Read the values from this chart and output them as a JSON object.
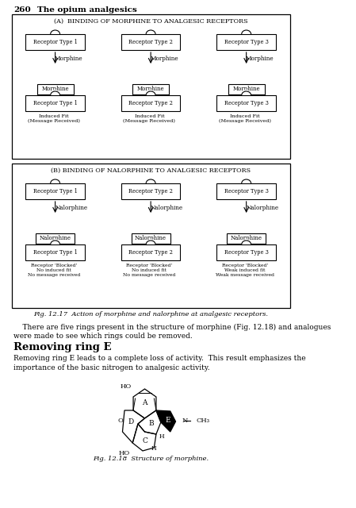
{
  "page_num": "260",
  "page_title": "The opium analgesics",
  "fig_caption_A": "Fig. 12.17  Action of morphine and nalorphine at analgesic receptors.",
  "section_heading": "Removing ring E",
  "paragraph1": "    There are five rings present in the structure of morphine (Fig. 12.18) and analogues",
  "paragraph1b": "were made to see which rings could be removed.",
  "paragraph2": "Removing ring E leads to a complete loss of activity.  This result emphasizes the",
  "paragraph2b": "importance of the basic nitrogen to analgesic activity.",
  "fig_caption_B": "Fig. 12.18  Structure of morphine.",
  "box_A_title": "(A)  BINDING OF MORPHINE TO ANALGESIC RECEPTORS",
  "box_B_title": "(B) BINDING OF NALORPHINE TO ANALGESIC RECEPTORS",
  "receptor_types": [
    "Receptor Type 1",
    "Receptor Type 2",
    "Receptor Type 3"
  ],
  "drug_A": "Morphine",
  "drug_B": "Nalorphine",
  "A_labels": [
    "Induced Fit\n(Message Received)",
    "Induced Fit\n(Message Received)",
    "Induced Fit\n(Message Received)"
  ],
  "B_labels": [
    "Receptor 'Blocked'\nNo induced fit\nNo message received",
    "Receptor 'Blocked'\nNo induced fit\nNo message received",
    "Receptor 'Blocked'\nWeak induced fit\nWeak message received"
  ],
  "bg_color": "#ffffff",
  "text_color": "#000000"
}
